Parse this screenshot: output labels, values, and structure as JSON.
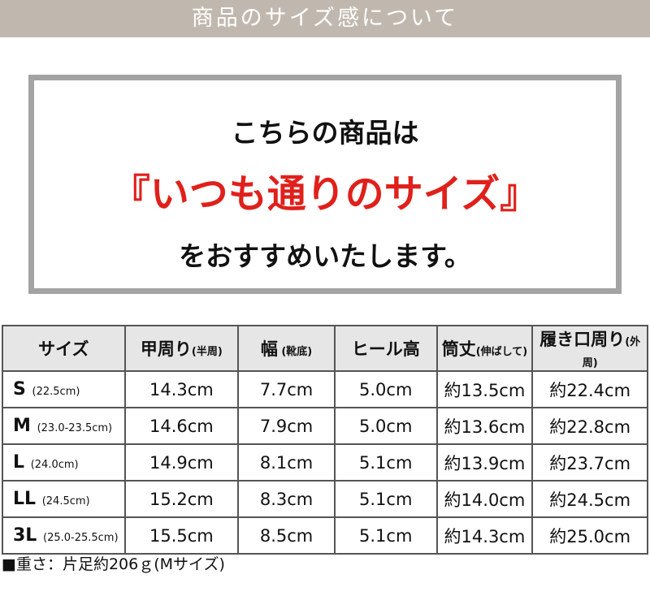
{
  "banner": {
    "title": "商品のサイズ感について"
  },
  "notice": {
    "line1": "こちらの商品は",
    "line2": "『いつも通りのサイズ』",
    "line3": "をおすすめいたします。",
    "accent_color": "#e0201b"
  },
  "table": {
    "headers": [
      {
        "main": "サイズ",
        "sub": ""
      },
      {
        "main": "甲周り",
        "sub": "(半周)"
      },
      {
        "main": "幅",
        "sub": " (靴底)"
      },
      {
        "main": "ヒール高",
        "sub": ""
      },
      {
        "main": "筒丈",
        "sub": "(伸ばして)"
      },
      {
        "main": "履き口周り",
        "sub": "(外周)"
      }
    ],
    "rows": [
      {
        "size": "S",
        "range": "(22.5cm)",
        "cells": [
          "14.3cm",
          "7.7cm",
          "5.0cm",
          "約13.5cm",
          "約22.4cm"
        ]
      },
      {
        "size": "M",
        "range": "(23.0-23.5cm)",
        "cells": [
          "14.6cm",
          "7.9cm",
          "5.0cm",
          "約13.6cm",
          "約22.8cm"
        ]
      },
      {
        "size": "L",
        "range": "(24.0cm)",
        "cells": [
          "14.9cm",
          "8.1cm",
          "5.1cm",
          "約13.9cm",
          "約23.7cm"
        ]
      },
      {
        "size": "LL",
        "range": "(24.5cm)",
        "cells": [
          "15.2cm",
          "8.3cm",
          "5.1cm",
          "約14.0cm",
          "約24.5cm"
        ]
      },
      {
        "size": "3L",
        "range": "(25.0-25.5cm)",
        "cells": [
          "15.5cm",
          "8.5cm",
          "5.1cm",
          "約14.3cm",
          "約25.0cm"
        ]
      }
    ]
  },
  "weight_note": "■重さ：片足約206ｇ(Mサイズ)"
}
